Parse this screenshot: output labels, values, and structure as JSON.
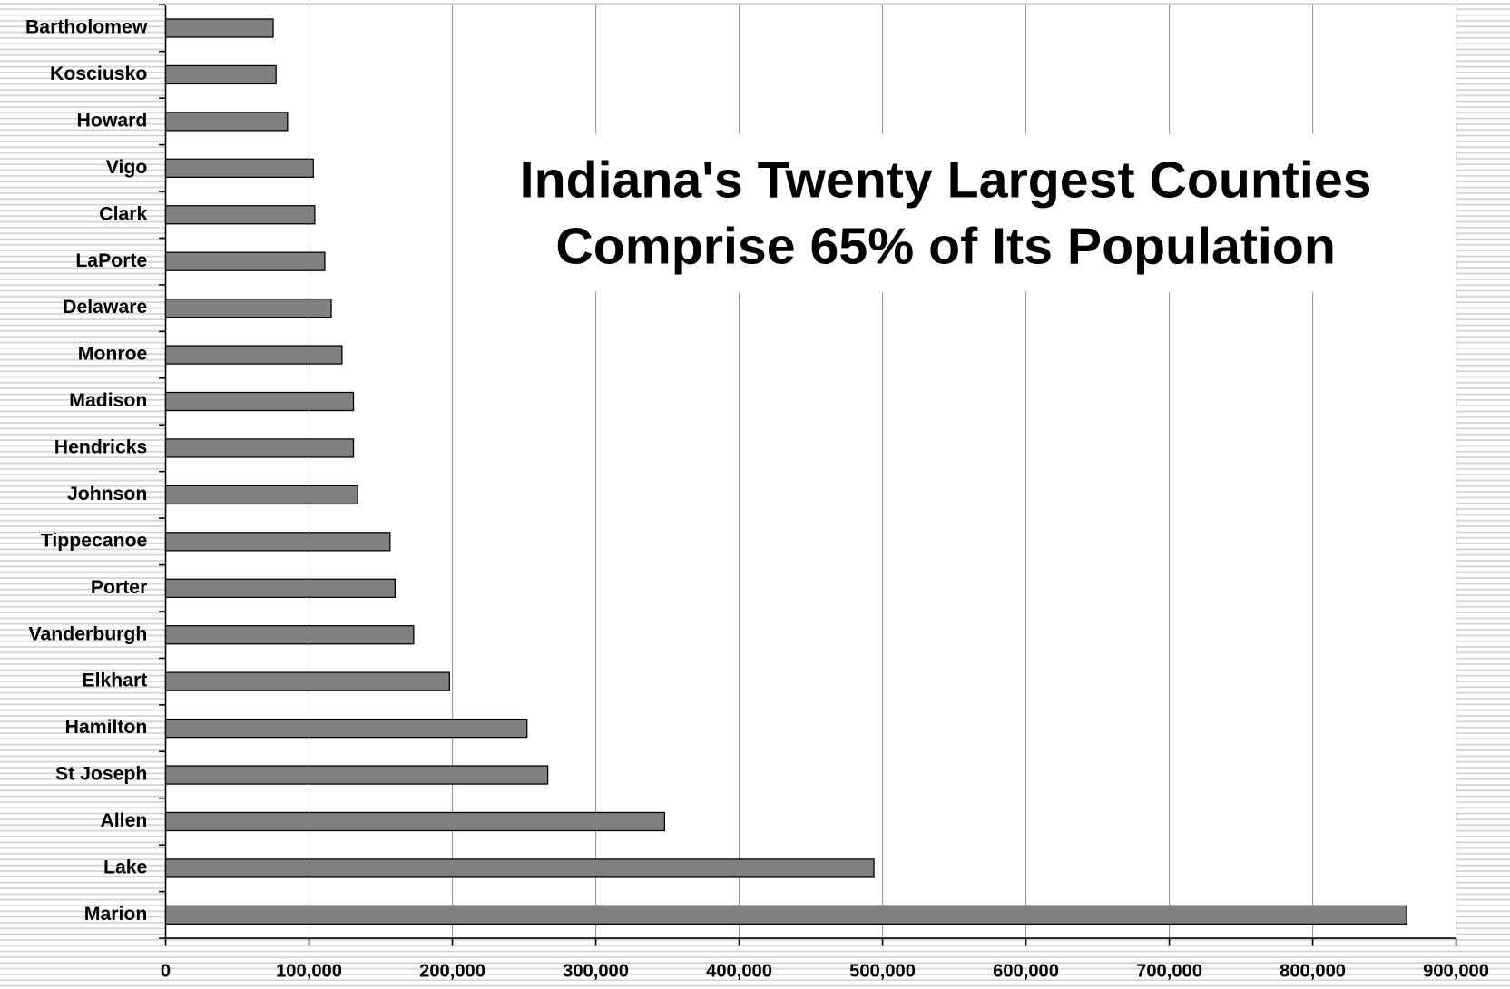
{
  "chart_data": {
    "type": "barh",
    "title": [
      "Indiana's Twenty Largest Counties",
      "Comprise 65% of Its Population"
    ],
    "categories": [
      "Bartholomew",
      "Kosciusko",
      "Howard",
      "Vigo",
      "Clark",
      "LaPorte",
      "Delaware",
      "Monroe",
      "Madison",
      "Hendricks",
      "Johnson",
      "Tippecanoe",
      "Porter",
      "Vanderburgh",
      "Elkhart",
      "Hamilton",
      "St Joseph",
      "Allen",
      "Lake",
      "Marion"
    ],
    "values": [
      75000,
      77000,
      85000,
      103000,
      104000,
      111000,
      115500,
      123000,
      131000,
      131000,
      134000,
      156500,
      160000,
      173000,
      198000,
      252000,
      266500,
      348000,
      494000,
      865500
    ],
    "color": "#808080",
    "xlim": [
      0,
      900000
    ],
    "xticks": [
      0,
      {
        "value": 100000,
        "label": "100,000"
      },
      {
        "value": 200000,
        "label": "200,000"
      },
      {
        "value": 300000,
        "label": "300,000"
      },
      {
        "value": 400000,
        "label": "400,000"
      },
      {
        "value": 500000,
        "label": "500,000"
      },
      {
        "value": 600000,
        "label": "600,000"
      },
      {
        "value": 700000,
        "label": "700,000"
      },
      {
        "value": 800000,
        "label": "800,000"
      },
      {
        "value": 900000,
        "label": "900,000"
      }
    ],
    "grid": true
  }
}
